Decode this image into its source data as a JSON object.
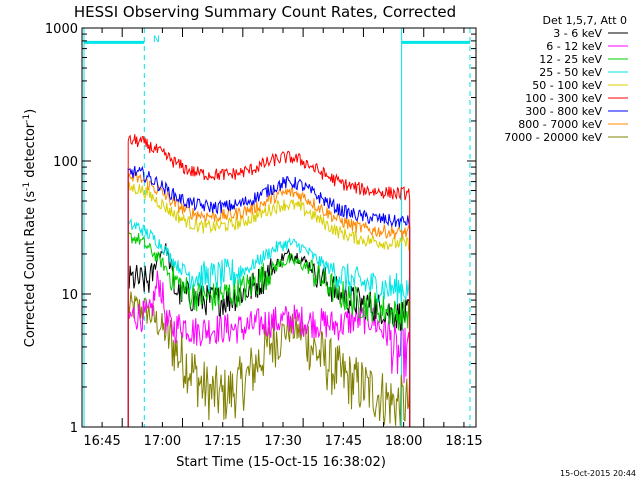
{
  "chart_data": {
    "type": "line",
    "title": "HESSI Observing Summary Count Rates, Corrected",
    "xlabel": "Start Time (15-Oct-15 16:38:02)",
    "ylabel_main": "Corrected Count Rate (s",
    "ylabel_sup1": "-1",
    "ylabel_mid": " detector",
    "ylabel_sup2": "-1",
    "ylabel_end": ")",
    "xlim_minutes": [
      1000,
      1098
    ],
    "ylim": [
      1,
      1000
    ],
    "yscale": "log",
    "x_ticks": [
      {
        "minute": 1005,
        "label": "16:45"
      },
      {
        "minute": 1020,
        "label": "17:00"
      },
      {
        "minute": 1035,
        "label": "17:15"
      },
      {
        "minute": 1050,
        "label": "17:30"
      },
      {
        "minute": 1065,
        "label": "17:45"
      },
      {
        "minute": 1080,
        "label": "18:00"
      },
      {
        "minute": 1095,
        "label": "18:15"
      }
    ],
    "y_ticks": [
      {
        "value": 1,
        "label": "1"
      },
      {
        "value": 10,
        "label": "10"
      },
      {
        "value": 100,
        "label": "100"
      },
      {
        "value": 1000,
        "label": "1000"
      }
    ],
    "legend_header": "Det 1,5,7, Att 0",
    "annotation_n": "N",
    "timestamp": "15-Oct-2015 20:44",
    "data_start_minute": 1011.5,
    "data_end_minute": 1081.5,
    "night_bars": [
      {
        "start": 1000.5,
        "end": 1015.5,
        "level": 780
      },
      {
        "start": 1079.5,
        "end": 1096.5,
        "level": 780
      }
    ],
    "dashed_lines_minutes": [
      1015.5,
      1096.5
    ],
    "solid_lines_minutes": [
      1000.5,
      1079.5
    ],
    "series": [
      {
        "name": "3 - 6 keV",
        "color": "#000000",
        "points": [
          [
            1011.5,
            12.5
          ],
          [
            1013,
            13
          ],
          [
            1015,
            12.5
          ],
          [
            1017,
            12.5
          ],
          [
            1019,
            20
          ],
          [
            1021,
            22
          ],
          [
            1023,
            11
          ],
          [
            1025,
            10
          ],
          [
            1027,
            9.5
          ],
          [
            1030,
            9
          ],
          [
            1033,
            9
          ],
          [
            1036,
            9
          ],
          [
            1039,
            10
          ],
          [
            1042,
            11
          ],
          [
            1045,
            13
          ],
          [
            1048,
            16
          ],
          [
            1050,
            19
          ],
          [
            1052,
            20
          ],
          [
            1054,
            19
          ],
          [
            1056,
            17
          ],
          [
            1058,
            15
          ],
          [
            1061,
            12
          ],
          [
            1064,
            10
          ],
          [
            1067,
            9
          ],
          [
            1070,
            8.5
          ],
          [
            1073,
            8
          ],
          [
            1076,
            7.5
          ],
          [
            1078,
            7
          ],
          [
            1081.5,
            7
          ]
        ]
      },
      {
        "name": "6 - 12 keV",
        "color": "#ff00ff",
        "points": [
          [
            1011.5,
            6.5
          ],
          [
            1013,
            7
          ],
          [
            1015,
            6.8
          ],
          [
            1017,
            7
          ],
          [
            1019,
            13
          ],
          [
            1020,
            10
          ],
          [
            1021,
            6
          ],
          [
            1023,
            5.5
          ],
          [
            1025,
            6
          ],
          [
            1028,
            5.2
          ],
          [
            1032,
            5.5
          ],
          [
            1036,
            5.5
          ],
          [
            1040,
            5.5
          ],
          [
            1044,
            6
          ],
          [
            1048,
            6.2
          ],
          [
            1052,
            6.5
          ],
          [
            1056,
            6.2
          ],
          [
            1060,
            6
          ],
          [
            1064,
            5.8
          ],
          [
            1068,
            6.5
          ],
          [
            1072,
            6.5
          ],
          [
            1076,
            5
          ],
          [
            1078,
            3.5
          ],
          [
            1081.5,
            3.5
          ]
        ]
      },
      {
        "name": "12 - 25 keV",
        "color": "#00cc00",
        "points": [
          [
            1011.5,
            27
          ],
          [
            1014,
            26
          ],
          [
            1016,
            23
          ],
          [
            1018,
            20
          ],
          [
            1020,
            17
          ],
          [
            1022,
            14
          ],
          [
            1024,
            12
          ],
          [
            1027,
            10
          ],
          [
            1030,
            9.5
          ],
          [
            1033,
            9.5
          ],
          [
            1036,
            10
          ],
          [
            1039,
            10.5
          ],
          [
            1042,
            11.5
          ],
          [
            1045,
            13.5
          ],
          [
            1048,
            16
          ],
          [
            1050,
            17.5
          ],
          [
            1052,
            18
          ],
          [
            1054,
            17
          ],
          [
            1056,
            16
          ],
          [
            1058,
            14
          ],
          [
            1061,
            12
          ],
          [
            1064,
            10
          ],
          [
            1067,
            9
          ],
          [
            1070,
            8.3
          ],
          [
            1073,
            8
          ],
          [
            1076,
            7.5
          ],
          [
            1078,
            7
          ],
          [
            1081.5,
            7
          ]
        ]
      },
      {
        "name": "25 - 50 keV",
        "color": "#00e5e5",
        "points": [
          [
            1011.5,
            33
          ],
          [
            1014,
            32
          ],
          [
            1016,
            29
          ],
          [
            1018,
            26
          ],
          [
            1020,
            23
          ],
          [
            1022,
            19
          ],
          [
            1024,
            16
          ],
          [
            1027,
            14
          ],
          [
            1030,
            13.5
          ],
          [
            1033,
            13.5
          ],
          [
            1036,
            14
          ],
          [
            1039,
            14.5
          ],
          [
            1042,
            16
          ],
          [
            1045,
            19
          ],
          [
            1048,
            22
          ],
          [
            1050,
            23.5
          ],
          [
            1052,
            24
          ],
          [
            1054,
            23
          ],
          [
            1056,
            21
          ],
          [
            1058,
            18.5
          ],
          [
            1061,
            16
          ],
          [
            1064,
            14
          ],
          [
            1067,
            12.5
          ],
          [
            1070,
            12
          ],
          [
            1073,
            11.5
          ],
          [
            1076,
            11
          ],
          [
            1078,
            11
          ],
          [
            1081.5,
            11
          ]
        ]
      },
      {
        "name": "50 - 100 keV",
        "color": "#d8d000",
        "points": [
          [
            1011.5,
            63
          ],
          [
            1014,
            62
          ],
          [
            1016,
            58
          ],
          [
            1018,
            52
          ],
          [
            1020,
            47
          ],
          [
            1022,
            42
          ],
          [
            1024,
            38
          ],
          [
            1027,
            34
          ],
          [
            1030,
            32
          ],
          [
            1033,
            32
          ],
          [
            1036,
            33
          ],
          [
            1039,
            34
          ],
          [
            1042,
            37
          ],
          [
            1045,
            41
          ],
          [
            1048,
            45
          ],
          [
            1050,
            47
          ],
          [
            1052,
            47
          ],
          [
            1054,
            45
          ],
          [
            1056,
            42
          ],
          [
            1058,
            38
          ],
          [
            1061,
            33
          ],
          [
            1064,
            29
          ],
          [
            1067,
            27
          ],
          [
            1070,
            25.5
          ],
          [
            1073,
            25
          ],
          [
            1076,
            24
          ],
          [
            1078,
            24
          ],
          [
            1081.5,
            24
          ]
        ]
      },
      {
        "name": "100 - 300 keV",
        "color": "#ff0000",
        "points": [
          [
            1011.5,
            140
          ],
          [
            1013,
            143
          ],
          [
            1015,
            138
          ],
          [
            1017,
            128
          ],
          [
            1019,
            118
          ],
          [
            1021,
            108
          ],
          [
            1023,
            98
          ],
          [
            1025,
            90
          ],
          [
            1027,
            84
          ],
          [
            1030,
            80
          ],
          [
            1033,
            79
          ],
          [
            1036,
            79
          ],
          [
            1039,
            81
          ],
          [
            1042,
            86
          ],
          [
            1045,
            94
          ],
          [
            1048,
            102
          ],
          [
            1050,
            106
          ],
          [
            1052,
            106
          ],
          [
            1054,
            102
          ],
          [
            1056,
            96
          ],
          [
            1058,
            87
          ],
          [
            1061,
            77
          ],
          [
            1064,
            69
          ],
          [
            1067,
            64
          ],
          [
            1070,
            61
          ],
          [
            1073,
            59
          ],
          [
            1076,
            58
          ],
          [
            1078,
            57
          ],
          [
            1081.5,
            57
          ]
        ]
      },
      {
        "name": "300 - 800 keV",
        "color": "#0000ff",
        "points": [
          [
            1011.5,
            82
          ],
          [
            1013,
            83
          ],
          [
            1015,
            80
          ],
          [
            1017,
            74
          ],
          [
            1019,
            67
          ],
          [
            1021,
            61
          ],
          [
            1023,
            55
          ],
          [
            1025,
            51
          ],
          [
            1027,
            48
          ],
          [
            1030,
            46
          ],
          [
            1033,
            45
          ],
          [
            1036,
            45.5
          ],
          [
            1039,
            47
          ],
          [
            1042,
            51
          ],
          [
            1045,
            57
          ],
          [
            1048,
            64
          ],
          [
            1050,
            68
          ],
          [
            1052,
            69
          ],
          [
            1054,
            67
          ],
          [
            1056,
            62
          ],
          [
            1058,
            56
          ],
          [
            1061,
            49
          ],
          [
            1064,
            43
          ],
          [
            1067,
            40
          ],
          [
            1070,
            38
          ],
          [
            1073,
            37
          ],
          [
            1076,
            36
          ],
          [
            1078,
            35
          ],
          [
            1081.5,
            35
          ]
        ]
      },
      {
        "name": "800 - 7000 keV",
        "color": "#ff8800",
        "points": [
          [
            1011.5,
            74
          ],
          [
            1013,
            75
          ],
          [
            1015,
            72
          ],
          [
            1017,
            66
          ],
          [
            1019,
            60
          ],
          [
            1021,
            54
          ],
          [
            1023,
            48
          ],
          [
            1025,
            44
          ],
          [
            1027,
            41
          ],
          [
            1030,
            39
          ],
          [
            1033,
            38.5
          ],
          [
            1036,
            39
          ],
          [
            1039,
            40.5
          ],
          [
            1042,
            43.5
          ],
          [
            1045,
            48
          ],
          [
            1048,
            54
          ],
          [
            1050,
            57
          ],
          [
            1052,
            58
          ],
          [
            1054,
            56
          ],
          [
            1056,
            52
          ],
          [
            1058,
            47
          ],
          [
            1061,
            41
          ],
          [
            1064,
            36
          ],
          [
            1067,
            33
          ],
          [
            1070,
            31
          ],
          [
            1073,
            30
          ],
          [
            1076,
            29.5
          ],
          [
            1078,
            29
          ],
          [
            1081.5,
            29
          ]
        ]
      },
      {
        "name": "7000 - 20000 keV",
        "color": "#808000",
        "points": [
          [
            1011.5,
            8
          ],
          [
            1014,
            7.8
          ],
          [
            1016,
            7.5
          ],
          [
            1018,
            6.5
          ],
          [
            1020,
            5.5
          ],
          [
            1022,
            4.5
          ],
          [
            1024,
            3.5
          ],
          [
            1026,
            3
          ],
          [
            1028,
            2.5
          ],
          [
            1030,
            2
          ],
          [
            1032,
            1.8
          ],
          [
            1035,
            1.7
          ],
          [
            1038,
            1.9
          ],
          [
            1041,
            2.3
          ],
          [
            1044,
            3.2
          ],
          [
            1047,
            4.3
          ],
          [
            1050,
            5.2
          ],
          [
            1052,
            5.5
          ],
          [
            1054,
            5.2
          ],
          [
            1056,
            4.5
          ],
          [
            1058,
            3.8
          ],
          [
            1061,
            3
          ],
          [
            1064,
            2.5
          ],
          [
            1067,
            2.2
          ],
          [
            1070,
            2
          ],
          [
            1073,
            1.8
          ],
          [
            1076,
            1.6
          ],
          [
            1078,
            1.5
          ],
          [
            1081.5,
            1.5
          ]
        ]
      }
    ]
  }
}
